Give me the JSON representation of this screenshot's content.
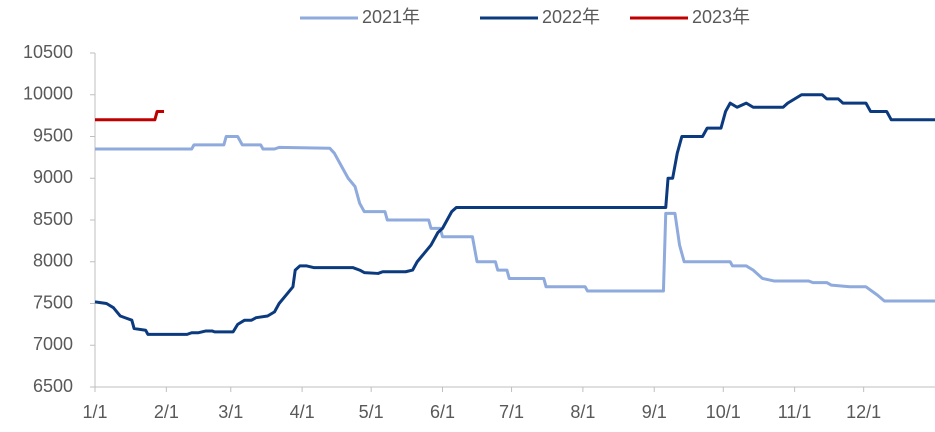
{
  "chart_data": {
    "type": "line",
    "xlim": [
      0,
      365
    ],
    "xticks": [
      {
        "value": 0,
        "label": "1/1"
      },
      {
        "value": 31,
        "label": "2/1"
      },
      {
        "value": 59,
        "label": "3/1"
      },
      {
        "value": 90,
        "label": "4/1"
      },
      {
        "value": 120,
        "label": "5/1"
      },
      {
        "value": 151,
        "label": "6/1"
      },
      {
        "value": 181,
        "label": "7/1"
      },
      {
        "value": 212,
        "label": "8/1"
      },
      {
        "value": 243,
        "label": "9/1"
      },
      {
        "value": 273,
        "label": "10/1"
      },
      {
        "value": 304,
        "label": "11/1"
      },
      {
        "value": 334,
        "label": "12/1"
      }
    ],
    "ylim": [
      6500,
      10500
    ],
    "yticks": [
      6500,
      7000,
      7500,
      8000,
      8500,
      9000,
      9500,
      10000,
      10500
    ],
    "series": [
      {
        "name": "2021年",
        "color": "#8faadc",
        "x": [
          0,
          42,
          43,
          56,
          57,
          62,
          64,
          72,
          73,
          78,
          80,
          102,
          104,
          107,
          110,
          113,
          115,
          117,
          126,
          127,
          145,
          146,
          150,
          151,
          164,
          166,
          174,
          175,
          179,
          180,
          195,
          196,
          213,
          214,
          247,
          248,
          252,
          254,
          256,
          276,
          277,
          283,
          286,
          290,
          295,
          310,
          312,
          318,
          320,
          328,
          335,
          340,
          343,
          365
        ],
        "values": [
          9350,
          9350,
          9400,
          9400,
          9500,
          9500,
          9400,
          9400,
          9350,
          9350,
          9370,
          9360,
          9300,
          9150,
          9000,
          8900,
          8700,
          8600,
          8600,
          8500,
          8500,
          8400,
          8400,
          8300,
          8300,
          8000,
          8000,
          7900,
          7900,
          7800,
          7800,
          7700,
          7700,
          7650,
          7650,
          8580,
          8580,
          8200,
          8000,
          8000,
          7950,
          7950,
          7900,
          7800,
          7770,
          7770,
          7750,
          7750,
          7720,
          7700,
          7700,
          7600,
          7530,
          7530
        ]
      },
      {
        "name": "2022年",
        "color": "#0b3a7e",
        "x": [
          0,
          5,
          8,
          11,
          16,
          17,
          22,
          23,
          40,
          42,
          45,
          48,
          51,
          52,
          60,
          62,
          65,
          68,
          70,
          75,
          78,
          80,
          83,
          86,
          87,
          89,
          92,
          95,
          112,
          115,
          117,
          123,
          125,
          135,
          138,
          140,
          143,
          146,
          149,
          151,
          153,
          155,
          157,
          248,
          249,
          251,
          253,
          255,
          264,
          266,
          272,
          274,
          276,
          279,
          283,
          286,
          299,
          301,
          307,
          316,
          318,
          323,
          325,
          335,
          337,
          344,
          346,
          365
        ],
        "values": [
          7520,
          7500,
          7450,
          7350,
          7300,
          7200,
          7180,
          7130,
          7130,
          7150,
          7150,
          7170,
          7170,
          7160,
          7160,
          7250,
          7300,
          7300,
          7330,
          7350,
          7400,
          7500,
          7600,
          7700,
          7900,
          7950,
          7950,
          7930,
          7930,
          7900,
          7870,
          7860,
          7880,
          7880,
          7900,
          8000,
          8100,
          8200,
          8350,
          8400,
          8500,
          8600,
          8650,
          8650,
          9000,
          9000,
          9300,
          9500,
          9500,
          9600,
          9600,
          9800,
          9900,
          9850,
          9900,
          9850,
          9850,
          9900,
          10000,
          10000,
          9950,
          9950,
          9900,
          9900,
          9800,
          9800,
          9700,
          9700
        ]
      },
      {
        "name": "2023年",
        "color": "#c00000",
        "x": [
          0,
          26,
          27,
          30
        ],
        "values": [
          9700,
          9700,
          9800,
          9800
        ]
      }
    ]
  }
}
